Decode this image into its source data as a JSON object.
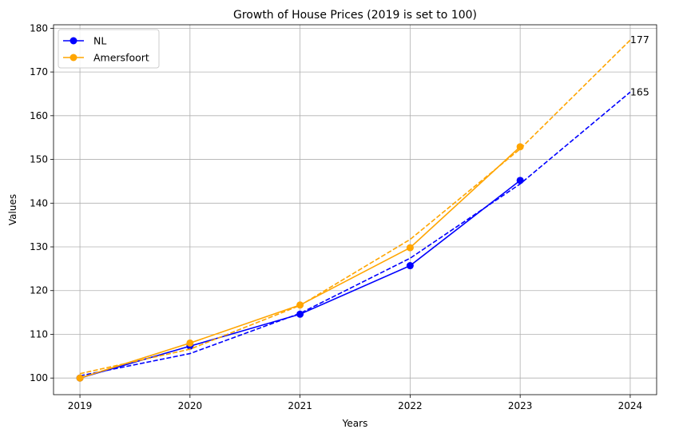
{
  "chart_data": {
    "type": "line",
    "title": "Growth of House Prices (2019 is set to 100)",
    "xlabel": "Years",
    "ylabel": "Values",
    "xlim": [
      2018.76,
      2024.24
    ],
    "ylim": [
      96.2,
      180.8
    ],
    "x_ticks": [
      "2019",
      "2020",
      "2021",
      "2022",
      "2023",
      "2024"
    ],
    "y_ticks": [
      "100",
      "110",
      "120",
      "130",
      "140",
      "150",
      "160",
      "170",
      "180"
    ],
    "grid": true,
    "legend_position": "top-left",
    "series": [
      {
        "name": "NL",
        "color": "#0000ff",
        "x": [
          2019,
          2020,
          2021,
          2022,
          2023
        ],
        "y": [
          100,
          107.3,
          114.6,
          125.7,
          145.2
        ],
        "trend": {
          "x": [
            2019,
            2020,
            2021,
            2022,
            2023,
            2024
          ],
          "y": [
            100.5,
            105.6,
            114.8,
            127.4,
            144.4,
            165.4
          ]
        },
        "end_label": "165"
      },
      {
        "name": "Amersfoort",
        "color": "#ffa500",
        "x": [
          2019,
          2020,
          2021,
          2022,
          2023
        ],
        "y": [
          100,
          108.0,
          116.7,
          129.8,
          152.9
        ],
        "trend": {
          "x": [
            2019,
            2020,
            2021,
            2022,
            2023,
            2024
          ],
          "y": [
            101.0,
            106.6,
            116.6,
            131.7,
            152.4,
            177.3
          ]
        },
        "end_label": "177"
      }
    ]
  }
}
